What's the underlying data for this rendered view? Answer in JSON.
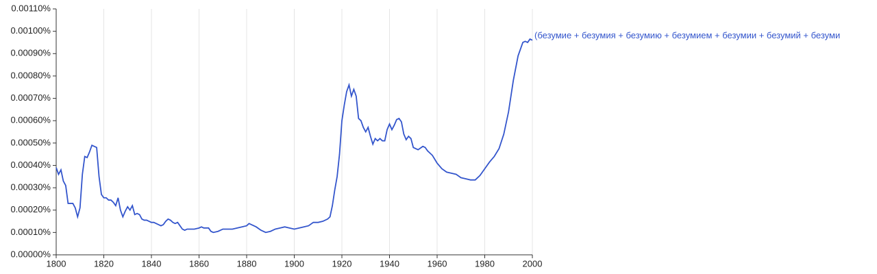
{
  "chart_data": {
    "type": "line",
    "x": [
      1800,
      1801,
      1802,
      1803,
      1804,
      1805,
      1806,
      1807,
      1808,
      1809,
      1810,
      1811,
      1812,
      1813,
      1814,
      1815,
      1816,
      1817,
      1818,
      1819,
      1820,
      1821,
      1822,
      1823,
      1824,
      1825,
      1826,
      1827,
      1828,
      1829,
      1830,
      1831,
      1832,
      1833,
      1834,
      1835,
      1836,
      1837,
      1838,
      1839,
      1840,
      1841,
      1842,
      1843,
      1844,
      1845,
      1846,
      1847,
      1848,
      1849,
      1850,
      1851,
      1852,
      1853,
      1854,
      1855,
      1856,
      1858,
      1860,
      1861,
      1862,
      1864,
      1865,
      1866,
      1868,
      1870,
      1872,
      1874,
      1876,
      1878,
      1880,
      1881,
      1882,
      1884,
      1886,
      1888,
      1890,
      1892,
      1894,
      1896,
      1898,
      1900,
      1902,
      1904,
      1906,
      1908,
      1910,
      1912,
      1914,
      1915,
      1916,
      1917,
      1918,
      1919,
      1920,
      1921,
      1922,
      1923,
      1924,
      1925,
      1926,
      1927,
      1928,
      1929,
      1930,
      1931,
      1932,
      1933,
      1934,
      1935,
      1936,
      1937,
      1938,
      1939,
      1940,
      1941,
      1942,
      1943,
      1944,
      1945,
      1946,
      1947,
      1948,
      1949,
      1950,
      1952,
      1954,
      1955,
      1956,
      1958,
      1960,
      1962,
      1964,
      1966,
      1968,
      1970,
      1972,
      1974,
      1976,
      1978,
      1980,
      1982,
      1984,
      1986,
      1988,
      1990,
      1992,
      1994,
      1996,
      1997,
      1998,
      1999,
      2000
    ],
    "series": [
      {
        "name": "(безумие + безумия + безумию + безумием + безумии + безумий + безуми",
        "color": "#3355cc",
        "values": [
          0.00039,
          0.00036,
          0.00038,
          0.00033,
          0.00031,
          0.00023,
          0.00023,
          0.00023,
          0.00021,
          0.00017,
          0.00021,
          0.00036,
          0.00044,
          0.000435,
          0.00046,
          0.00049,
          0.000485,
          0.00048,
          0.00035,
          0.00027,
          0.000255,
          0.000255,
          0.000245,
          0.000245,
          0.000235,
          0.00022,
          0.000255,
          0.0002,
          0.00017,
          0.000195,
          0.000215,
          0.0002,
          0.00022,
          0.00018,
          0.000185,
          0.00018,
          0.00016,
          0.000155,
          0.000155,
          0.00015,
          0.000145,
          0.000145,
          0.00014,
          0.000135,
          0.00013,
          0.000135,
          0.00015,
          0.00016,
          0.000155,
          0.000145,
          0.00014,
          0.000145,
          0.00013,
          0.000115,
          0.00011,
          0.000115,
          0.000115,
          0.000115,
          0.00012,
          0.000125,
          0.00012,
          0.00012,
          0.000105,
          0.0001,
          0.000105,
          0.000115,
          0.000115,
          0.000115,
          0.00012,
          0.000125,
          0.00013,
          0.00014,
          0.000135,
          0.000125,
          0.00011,
          0.0001,
          0.000105,
          0.000115,
          0.00012,
          0.000125,
          0.00012,
          0.000115,
          0.00012,
          0.000125,
          0.00013,
          0.000145,
          0.000145,
          0.00015,
          0.00016,
          0.00017,
          0.00022,
          0.00029,
          0.00035,
          0.00045,
          0.0006,
          0.00067,
          0.00073,
          0.00076,
          0.00071,
          0.00074,
          0.00071,
          0.00061,
          0.0006,
          0.00057,
          0.00055,
          0.00057,
          0.00053,
          0.000495,
          0.00052,
          0.00051,
          0.00052,
          0.00051,
          0.00051,
          0.00056,
          0.000585,
          0.00056,
          0.00058,
          0.000605,
          0.00061,
          0.000595,
          0.00054,
          0.000515,
          0.00053,
          0.00052,
          0.00048,
          0.00047,
          0.000485,
          0.00048,
          0.000465,
          0.000445,
          0.00041,
          0.000385,
          0.00037,
          0.000365,
          0.00036,
          0.000345,
          0.00034,
          0.000335,
          0.000335,
          0.000355,
          0.000385,
          0.000415,
          0.00044,
          0.000475,
          0.00054,
          0.00064,
          0.00078,
          0.00089,
          0.00095,
          0.000955,
          0.00095,
          0.000965,
          0.00096
        ]
      }
    ],
    "xlim": [
      1800,
      2000
    ],
    "xticks": [
      1800,
      1820,
      1840,
      1860,
      1880,
      1900,
      1920,
      1940,
      1960,
      1980,
      2000
    ],
    "ylim": [
      0,
      0.0011
    ],
    "yticks": [
      {
        "value": 0,
        "label": "0.00000%"
      },
      {
        "value": 0.0001,
        "label": "0.00010%"
      },
      {
        "value": 0.0002,
        "label": "0.00020%"
      },
      {
        "value": 0.0003,
        "label": "0.00030%"
      },
      {
        "value": 0.0004,
        "label": "0.00040%"
      },
      {
        "value": 0.0005,
        "label": "0.00050%"
      },
      {
        "value": 0.0006,
        "label": "0.00060%"
      },
      {
        "value": 0.0007,
        "label": "0.00070%"
      },
      {
        "value": 0.0008,
        "label": "0.00080%"
      },
      {
        "value": 0.0009,
        "label": "0.00090%"
      },
      {
        "value": 0.001,
        "label": "0.00100%"
      },
      {
        "value": 0.0011,
        "label": "0.00110%"
      }
    ],
    "xgrid": true
  }
}
